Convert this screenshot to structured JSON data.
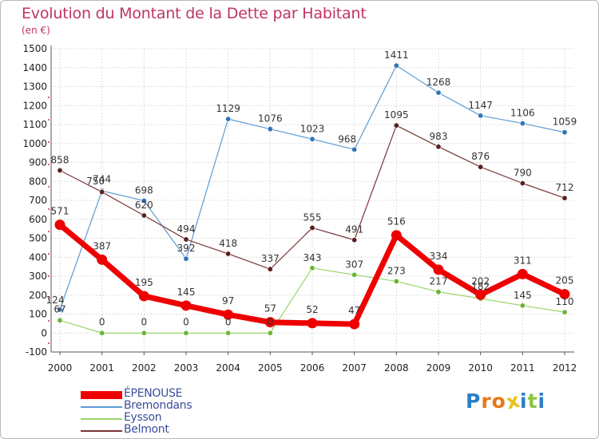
{
  "title": "Evolution du Montant de la Dette par Habitant",
  "unit": "(en €)",
  "logo": {
    "letters": [
      "P",
      "r",
      "o",
      "x",
      "i",
      "t",
      "i"
    ],
    "colors": [
      "#2a7fc4",
      "#e87817",
      "#e87817",
      "#e8c21a",
      "#2a7fc4",
      "#8cc63f",
      "#2a7fc4"
    ]
  },
  "chart_data": {
    "type": "line",
    "x": [
      "2000",
      "2001",
      "2002",
      "2003",
      "2004",
      "2005",
      "2006",
      "2007",
      "2008",
      "2009",
      "2010",
      "2011",
      "2012"
    ],
    "ylim": [
      -100,
      1500
    ],
    "yticks": [
      -100,
      0,
      100,
      200,
      300,
      400,
      500,
      600,
      700,
      800,
      900,
      1000,
      1100,
      1200,
      1300,
      1400,
      1500
    ],
    "grid": true,
    "legend_position": "bottom-left",
    "series": [
      {
        "name": "Bremondans",
        "color": "#5b9bd5",
        "point_color": "#2e75b6",
        "width": 1.2,
        "marker": 3.2,
        "values": [
          124,
          750,
          698,
          392,
          1129,
          1076,
          1023,
          968,
          1411,
          1268,
          1147,
          1106,
          1059
        ]
      },
      {
        "name": "Eysson",
        "color": "#9ad36a",
        "point_color": "#6ab535",
        "width": 1.2,
        "marker": 3.2,
        "values": [
          67,
          0,
          0,
          0,
          0,
          0,
          343,
          307,
          273,
          217,
          182,
          145,
          110
        ]
      },
      {
        "name": "Belmont",
        "color": "#7a3535",
        "point_color": "#5a1f1f",
        "width": 1.2,
        "marker": 3.2,
        "values": [
          858,
          744,
          620,
          494,
          418,
          337,
          555,
          491,
          1095,
          983,
          876,
          790,
          712
        ]
      },
      {
        "name": "ÉPENOUSE",
        "color": "#ee0000",
        "point_color": "#ee0000",
        "width": 7,
        "marker": 6.5,
        "values": [
          571,
          387,
          195,
          145,
          97,
          57,
          52,
          47,
          516,
          334,
          202,
          311,
          205
        ]
      }
    ],
    "legend_order": [
      "ÉPENOUSE",
      "Bremondans",
      "Eysson",
      "Belmont"
    ]
  }
}
